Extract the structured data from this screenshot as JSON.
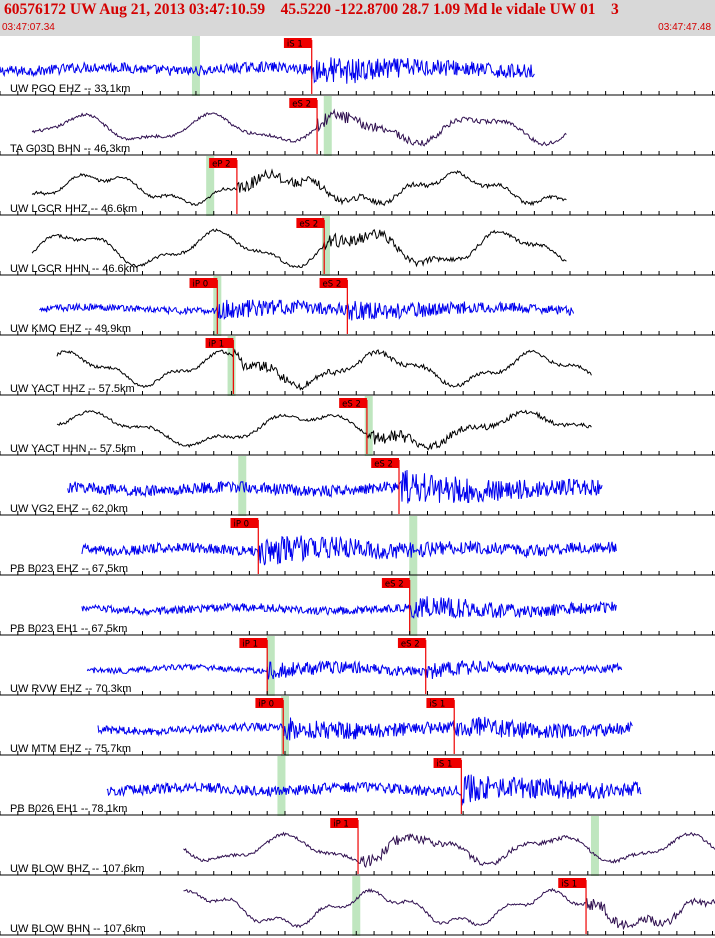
{
  "header": {
    "title": "60576172 UW Aug 21, 2013 03:47:10.59    45.5220 -122.8700 28.7 1.09 Md le vidale UW 01    3",
    "time_start": "03:47:07.34",
    "time_end": "03:47:47.48"
  },
  "colors": {
    "background": "#ffffff",
    "header_bg": "#d8d8d8",
    "header_text": "#d40000",
    "trace_blue": "#0000ee",
    "trace_black": "#000000",
    "trace_purple": "#301050",
    "pick_flag": "#ee0000",
    "pick_window": "#bfe6bf"
  },
  "chart_data": {
    "type": "line",
    "title": "",
    "xlim": [
      0.0,
      40.14
    ],
    "tick_spacing": 1.0,
    "series": [
      {
        "label": "UW PGO EHZ -- 33.1km",
        "color": "#0000ee",
        "start": 0.0,
        "end": 30.0,
        "amp": 0.45,
        "style": "noise",
        "win": 11.0,
        "picks": [
          {
            "label": "iS 1",
            "t": 17.5
          }
        ]
      },
      {
        "label": "TA G03D BHN -- 46.3km",
        "color": "#301050",
        "start": 1.8,
        "end": 31.8,
        "amp": 0.6,
        "style": "wave",
        "win": 18.4,
        "picks": [
          {
            "label": "eS 2",
            "t": 17.8
          }
        ]
      },
      {
        "label": "UW LGCR HHZ -- 46.6km",
        "color": "#000000",
        "start": 1.8,
        "end": 31.8,
        "amp": 0.65,
        "style": "wave",
        "win": 11.8,
        "picks": [
          {
            "label": "eP 2",
            "t": 13.3
          }
        ]
      },
      {
        "label": "UW LGCR HHN -- 46.6km",
        "color": "#000000",
        "start": 1.8,
        "end": 31.8,
        "amp": 0.75,
        "style": "wave",
        "win": 18.3,
        "picks": [
          {
            "label": "eS 2",
            "t": 18.2
          }
        ]
      },
      {
        "label": "UW KMO EHZ -- 49.9km",
        "color": "#0000ee",
        "start": 2.2,
        "end": 32.2,
        "amp": 0.3,
        "style": "noise",
        "win": 12.2,
        "picks": [
          {
            "label": "iP 0",
            "t": 12.2
          },
          {
            "label": "eS 2",
            "t": 19.5
          }
        ]
      },
      {
        "label": "UW YACT HHZ -- 57.5km",
        "color": "#000000",
        "start": 3.2,
        "end": 33.2,
        "amp": 0.7,
        "style": "wave",
        "win": 13.0,
        "picks": [
          {
            "label": "iP 1",
            "t": 13.1
          }
        ]
      },
      {
        "label": "UW YACT HHN -- 57.5km",
        "color": "#000000",
        "start": 3.2,
        "end": 33.2,
        "amp": 0.7,
        "style": "wave",
        "win": 20.7,
        "picks": [
          {
            "label": "eS 2",
            "t": 20.6
          }
        ]
      },
      {
        "label": "UW VG2 EHZ -- 62.0km",
        "color": "#0000ee",
        "start": 3.8,
        "end": 33.8,
        "amp": 0.5,
        "style": "noise",
        "win": 13.6,
        "picks": [
          {
            "label": "eS 2",
            "t": 22.4
          }
        ]
      },
      {
        "label": "PB B023 EHZ -- 67.5km",
        "color": "#0000ee",
        "start": 4.6,
        "end": 34.6,
        "amp": 0.45,
        "style": "noise",
        "win": 23.2,
        "picks": [
          {
            "label": "iP 0",
            "t": 14.5
          }
        ]
      },
      {
        "label": "PB B023 EH1 -- 67.5km",
        "color": "#0000ee",
        "start": 4.6,
        "end": 34.6,
        "amp": 0.35,
        "style": "noise",
        "win": 23.2,
        "picks": [
          {
            "label": "eS 2",
            "t": 23.0
          }
        ]
      },
      {
        "label": "UW RVW EHZ -- 70.3km",
        "color": "#0000ee",
        "start": 4.9,
        "end": 34.9,
        "amp": 0.25,
        "style": "noise",
        "win": 15.2,
        "picks": [
          {
            "label": "iP 1",
            "t": 15.0
          },
          {
            "label": "eS 2",
            "t": 23.9
          }
        ]
      },
      {
        "label": "UW MTM EHZ -- 75.7km",
        "color": "#0000ee",
        "start": 5.5,
        "end": 35.5,
        "amp": 0.35,
        "style": "noise",
        "win": 16.0,
        "picks": [
          {
            "label": "iP 0",
            "t": 15.9
          },
          {
            "label": "iS 1",
            "t": 25.5
          }
        ]
      },
      {
        "label": "PB B026 EH1 -- 78.1km",
        "color": "#0000ee",
        "start": 6.0,
        "end": 36.0,
        "amp": 0.45,
        "style": "noise",
        "win": 15.8,
        "picks": [
          {
            "label": "iS 1",
            "t": 25.9
          }
        ]
      },
      {
        "label": "UW BLOW BHZ -- 107.6km",
        "color": "#301050",
        "start": 10.3,
        "end": 40.3,
        "amp": 0.6,
        "style": "wave",
        "win": 33.4,
        "picks": [
          {
            "label": "iP 1",
            "t": 20.1
          }
        ]
      },
      {
        "label": "UW BLOW BHN -- 107.6km",
        "color": "#301050",
        "start": 10.3,
        "end": 40.3,
        "amp": 0.75,
        "style": "wave",
        "win": 20.0,
        "picks": [
          {
            "label": "iS 1",
            "t": 32.9
          }
        ]
      }
    ]
  }
}
